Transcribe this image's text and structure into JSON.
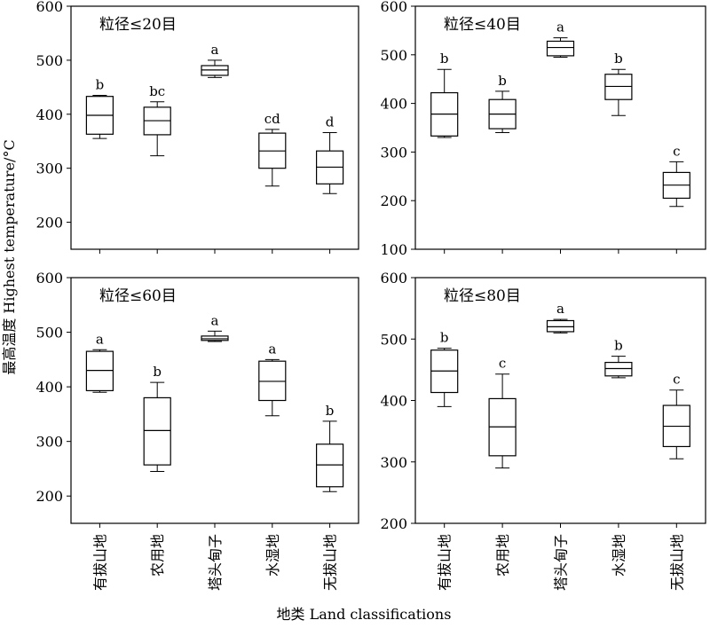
{
  "figure": {
    "ylabel": "最高温度 Highest temperature/°C",
    "xlabel": "地类 Land classifications",
    "categories": [
      "有拔山地",
      "农用地",
      "塔头甸子",
      "水湿地",
      "无拔山地"
    ]
  },
  "chart_data": [
    {
      "type": "box",
      "title": "粒径≤20目",
      "ylim": [
        150,
        600
      ],
      "yticks": [
        200,
        300,
        400,
        500,
        600
      ],
      "categories": [
        "有拔山地",
        "农用地",
        "塔头甸子",
        "水湿地",
        "无拔山地"
      ],
      "boxes": [
        {
          "min": 355,
          "q1": 363,
          "median": 398,
          "q3": 433,
          "max": 435,
          "letter": "b"
        },
        {
          "min": 323,
          "q1": 362,
          "median": 388,
          "q3": 413,
          "max": 423,
          "letter": "bc"
        },
        {
          "min": 468,
          "q1": 472,
          "median": 482,
          "q3": 490,
          "max": 500,
          "letter": "a"
        },
        {
          "min": 267,
          "q1": 300,
          "median": 332,
          "q3": 365,
          "max": 372,
          "letter": "cd"
        },
        {
          "min": 253,
          "q1": 271,
          "median": 302,
          "q3": 332,
          "max": 366,
          "letter": "d"
        }
      ]
    },
    {
      "type": "box",
      "title": "粒径≤40目",
      "ylim": [
        100,
        600
      ],
      "yticks": [
        100,
        200,
        300,
        400,
        500,
        600
      ],
      "categories": [
        "有拔山地",
        "农用地",
        "塔头甸子",
        "水湿地",
        "无拔山地"
      ],
      "boxes": [
        {
          "min": 330,
          "q1": 333,
          "median": 378,
          "q3": 422,
          "max": 470,
          "letter": "b"
        },
        {
          "min": 340,
          "q1": 348,
          "median": 378,
          "q3": 408,
          "max": 425,
          "letter": "b"
        },
        {
          "min": 495,
          "q1": 498,
          "median": 515,
          "q3": 528,
          "max": 535,
          "letter": "a"
        },
        {
          "min": 375,
          "q1": 408,
          "median": 435,
          "q3": 460,
          "max": 470,
          "letter": "b"
        },
        {
          "min": 188,
          "q1": 205,
          "median": 232,
          "q3": 258,
          "max": 280,
          "letter": "c"
        }
      ]
    },
    {
      "type": "box",
      "title": "粒径≤60目",
      "ylim": [
        150,
        600
      ],
      "yticks": [
        200,
        300,
        400,
        500,
        600
      ],
      "categories": [
        "有拔山地",
        "农用地",
        "塔头甸子",
        "水湿地",
        "无拔山地"
      ],
      "boxes": [
        {
          "min": 390,
          "q1": 393,
          "median": 430,
          "q3": 465,
          "max": 468,
          "letter": "a"
        },
        {
          "min": 245,
          "q1": 257,
          "median": 320,
          "q3": 380,
          "max": 408,
          "letter": "b"
        },
        {
          "min": 483,
          "q1": 485,
          "median": 488,
          "q3": 493,
          "max": 502,
          "letter": "a"
        },
        {
          "min": 347,
          "q1": 375,
          "median": 410,
          "q3": 447,
          "max": 450,
          "letter": "a"
        },
        {
          "min": 208,
          "q1": 217,
          "median": 257,
          "q3": 295,
          "max": 337,
          "letter": "b"
        }
      ]
    },
    {
      "type": "box",
      "title": "粒径≤80目",
      "ylim": [
        200,
        600
      ],
      "yticks": [
        200,
        300,
        400,
        500,
        600
      ],
      "categories": [
        "有拔山地",
        "农用地",
        "塔头甸子",
        "水湿地",
        "无拔山地"
      ],
      "boxes": [
        {
          "min": 390,
          "q1": 413,
          "median": 448,
          "q3": 482,
          "max": 485,
          "letter": "b"
        },
        {
          "min": 290,
          "q1": 310,
          "median": 357,
          "q3": 403,
          "max": 443,
          "letter": "c"
        },
        {
          "min": 510,
          "q1": 512,
          "median": 520,
          "q3": 530,
          "max": 532,
          "letter": "a"
        },
        {
          "min": 437,
          "q1": 440,
          "median": 452,
          "q3": 462,
          "max": 472,
          "letter": "b"
        },
        {
          "min": 305,
          "q1": 325,
          "median": 358,
          "q3": 392,
          "max": 417,
          "letter": "c"
        }
      ]
    }
  ]
}
